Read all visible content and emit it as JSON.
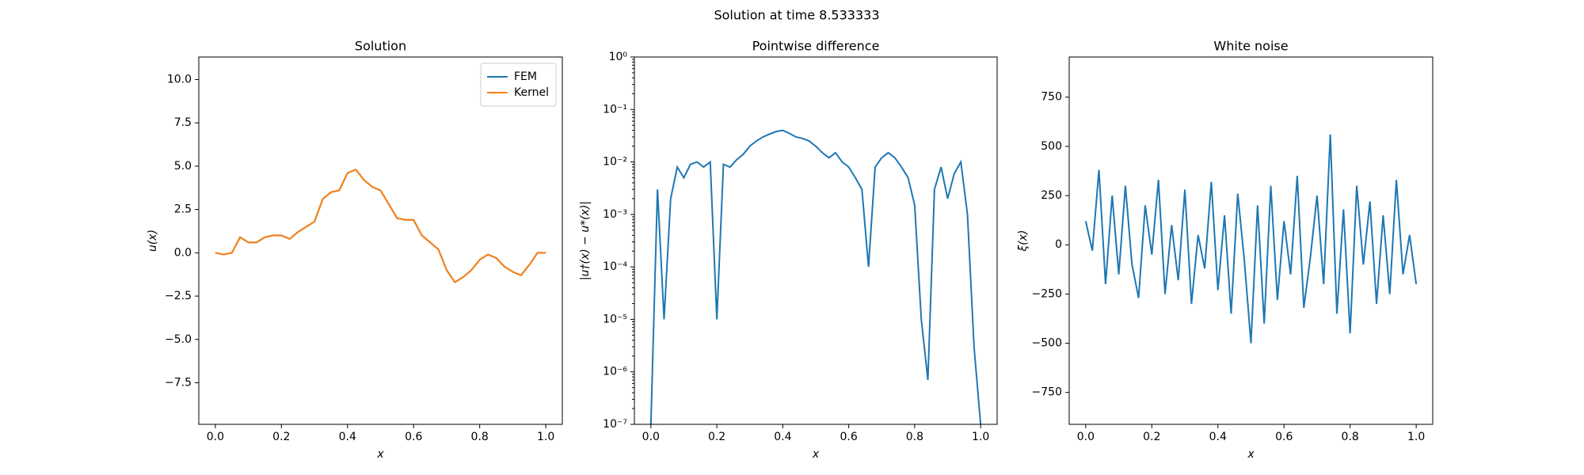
{
  "figure_title": "Solution at time 8.533333",
  "chart_data": [
    {
      "type": "line",
      "title": "Solution",
      "x_label": "x",
      "y_label": "u(x)",
      "x": [
        0,
        0.025,
        0.05,
        0.075,
        0.1,
        0.125,
        0.15,
        0.175,
        0.2,
        0.225,
        0.25,
        0.275,
        0.3,
        0.325,
        0.35,
        0.375,
        0.4,
        0.425,
        0.45,
        0.475,
        0.5,
        0.525,
        0.55,
        0.575,
        0.6,
        0.625,
        0.65,
        0.675,
        0.7,
        0.725,
        0.75,
        0.775,
        0.8,
        0.825,
        0.85,
        0.875,
        0.9,
        0.925,
        0.95,
        0.975,
        1.0
      ],
      "series": [
        {
          "name": "FEM",
          "color": "#1f77b4",
          "values": [
            0.0,
            -0.1,
            0.0,
            0.9,
            0.6,
            0.6,
            0.9,
            1.0,
            1.0,
            0.8,
            1.2,
            1.5,
            1.8,
            3.1,
            3.5,
            3.6,
            4.6,
            4.8,
            4.2,
            3.8,
            3.6,
            2.8,
            2.0,
            1.9,
            1.9,
            1.0,
            0.6,
            0.2,
            -1.0,
            -1.7,
            -1.4,
            -1.0,
            -0.4,
            -0.1,
            -0.3,
            -0.8,
            -1.1,
            -1.3,
            -0.7,
            0.0,
            0.0
          ]
        },
        {
          "name": "Kernel",
          "color": "#ff7f0e",
          "values": [
            0.0,
            -0.1,
            0.0,
            0.9,
            0.6,
            0.6,
            0.9,
            1.0,
            1.0,
            0.8,
            1.2,
            1.5,
            1.8,
            3.1,
            3.5,
            3.6,
            4.6,
            4.8,
            4.2,
            3.8,
            3.6,
            2.8,
            2.0,
            1.9,
            1.9,
            1.0,
            0.6,
            0.2,
            -1.0,
            -1.7,
            -1.4,
            -1.0,
            -0.4,
            -0.1,
            -0.3,
            -0.8,
            -1.1,
            -1.3,
            -0.7,
            0.0,
            0.0
          ]
        }
      ],
      "xlim": [
        -0.05,
        1.05
      ],
      "ylim": [
        -9.9,
        11.3
      ],
      "xticks": [
        {
          "value": 0,
          "label": "0.0"
        },
        {
          "value": 0.2,
          "label": "0.2"
        },
        {
          "value": 0.4,
          "label": "0.4"
        },
        {
          "value": 0.6,
          "label": "0.6"
        },
        {
          "value": 0.8,
          "label": "0.8"
        },
        {
          "value": 1,
          "label": "1.0"
        }
      ],
      "yticks": [
        {
          "value": -7.5,
          "label": "−7.5"
        },
        {
          "value": -5,
          "label": "−5.0"
        },
        {
          "value": -2.5,
          "label": "−2.5"
        },
        {
          "value": 0,
          "label": "0.0"
        },
        {
          "value": 2.5,
          "label": "2.5"
        },
        {
          "value": 5,
          "label": "5.0"
        },
        {
          "value": 7.5,
          "label": "7.5"
        },
        {
          "value": 10,
          "label": "10.0"
        }
      ],
      "legend": "upper right",
      "log_y": false
    },
    {
      "type": "line",
      "title": "Pointwise difference",
      "x_label": "x",
      "y_label": "|u†(x) − u*(x)|",
      "x": [
        0,
        0.02,
        0.04,
        0.06,
        0.08,
        0.1,
        0.12,
        0.14,
        0.16,
        0.18,
        0.2,
        0.22,
        0.24,
        0.26,
        0.28,
        0.3,
        0.32,
        0.34,
        0.36,
        0.38,
        0.4,
        0.42,
        0.44,
        0.46,
        0.48,
        0.5,
        0.52,
        0.54,
        0.56,
        0.58,
        0.6,
        0.62,
        0.64,
        0.66,
        0.68,
        0.7,
        0.72,
        0.74,
        0.76,
        0.78,
        0.8,
        0.82,
        0.84,
        0.86,
        0.88,
        0.9,
        0.92,
        0.94,
        0.96,
        0.98,
        1.0
      ],
      "series": [
        {
          "name": null,
          "color": "#1f77b4",
          "values": [
            1e-07,
            0.003,
            1e-05,
            0.002,
            0.008,
            0.005,
            0.009,
            0.01,
            0.008,
            0.01,
            1e-05,
            0.009,
            0.008,
            0.011,
            0.014,
            0.02,
            0.025,
            0.03,
            0.034,
            0.038,
            0.04,
            0.035,
            0.03,
            0.028,
            0.025,
            0.02,
            0.015,
            0.012,
            0.015,
            0.01,
            0.008,
            0.005,
            0.003,
            0.0001,
            0.008,
            0.012,
            0.015,
            0.012,
            0.008,
            0.005,
            0.0015,
            1e-05,
            7e-07,
            0.003,
            0.008,
            0.002,
            0.006,
            0.01,
            0.001,
            3e-06,
            1e-07
          ]
        }
      ],
      "xlim": [
        -0.05,
        1.05
      ],
      "ylim": [
        1e-07,
        1
      ],
      "xticks": [
        {
          "value": 0,
          "label": "0.0"
        },
        {
          "value": 0.2,
          "label": "0.2"
        },
        {
          "value": 0.4,
          "label": "0.4"
        },
        {
          "value": 0.6,
          "label": "0.6"
        },
        {
          "value": 0.8,
          "label": "0.8"
        },
        {
          "value": 1,
          "label": "1.0"
        }
      ],
      "yticks": [
        {
          "value": 1e-07,
          "label": "10⁻⁷"
        },
        {
          "value": 1e-06,
          "label": "10⁻⁶"
        },
        {
          "value": 1e-05,
          "label": "10⁻⁵"
        },
        {
          "value": 0.0001,
          "label": "10⁻⁴"
        },
        {
          "value": 0.001,
          "label": "10⁻³"
        },
        {
          "value": 0.01,
          "label": "10⁻²"
        },
        {
          "value": 0.1,
          "label": "10⁻¹"
        },
        {
          "value": 1,
          "label": "10⁰"
        }
      ],
      "log_y": true
    },
    {
      "type": "line",
      "title": "White noise",
      "x_label": "x",
      "y_label": "ξ(x)",
      "x": [
        0,
        0.02,
        0.04,
        0.06,
        0.08,
        0.1,
        0.12,
        0.14,
        0.16,
        0.18,
        0.2,
        0.22,
        0.24,
        0.26,
        0.28,
        0.3,
        0.32,
        0.34,
        0.36,
        0.38,
        0.4,
        0.42,
        0.44,
        0.46,
        0.48,
        0.5,
        0.52,
        0.54,
        0.56,
        0.58,
        0.6,
        0.62,
        0.64,
        0.66,
        0.68,
        0.7,
        0.72,
        0.74,
        0.76,
        0.78,
        0.8,
        0.82,
        0.84,
        0.86,
        0.88,
        0.9,
        0.92,
        0.94,
        0.96,
        0.98,
        1.0
      ],
      "series": [
        {
          "name": null,
          "color": "#1f77b4",
          "values": [
            120,
            -30,
            380,
            -200,
            250,
            -150,
            300,
            -100,
            -270,
            200,
            -50,
            330,
            -250,
            100,
            -180,
            280,
            -300,
            50,
            -120,
            320,
            -230,
            150,
            -350,
            260,
            -80,
            -500,
            200,
            -400,
            300,
            -280,
            120,
            -150,
            350,
            -320,
            -60,
            250,
            -200,
            560,
            -350,
            180,
            -450,
            300,
            -100,
            220,
            -300,
            150,
            -250,
            330,
            -150,
            50,
            -200
          ]
        }
      ],
      "xlim": [
        -0.05,
        1.05
      ],
      "ylim": [
        -912,
        954
      ],
      "xticks": [
        {
          "value": 0,
          "label": "0.0"
        },
        {
          "value": 0.2,
          "label": "0.2"
        },
        {
          "value": 0.4,
          "label": "0.4"
        },
        {
          "value": 0.6,
          "label": "0.6"
        },
        {
          "value": 0.8,
          "label": "0.8"
        },
        {
          "value": 1,
          "label": "1.0"
        }
      ],
      "yticks": [
        {
          "value": -750,
          "label": "−750"
        },
        {
          "value": -500,
          "label": "−500"
        },
        {
          "value": -250,
          "label": "−250"
        },
        {
          "value": 0,
          "label": "0"
        },
        {
          "value": 250,
          "label": "250"
        },
        {
          "value": 500,
          "label": "500"
        },
        {
          "value": 750,
          "label": "750"
        }
      ],
      "log_y": false
    }
  ]
}
